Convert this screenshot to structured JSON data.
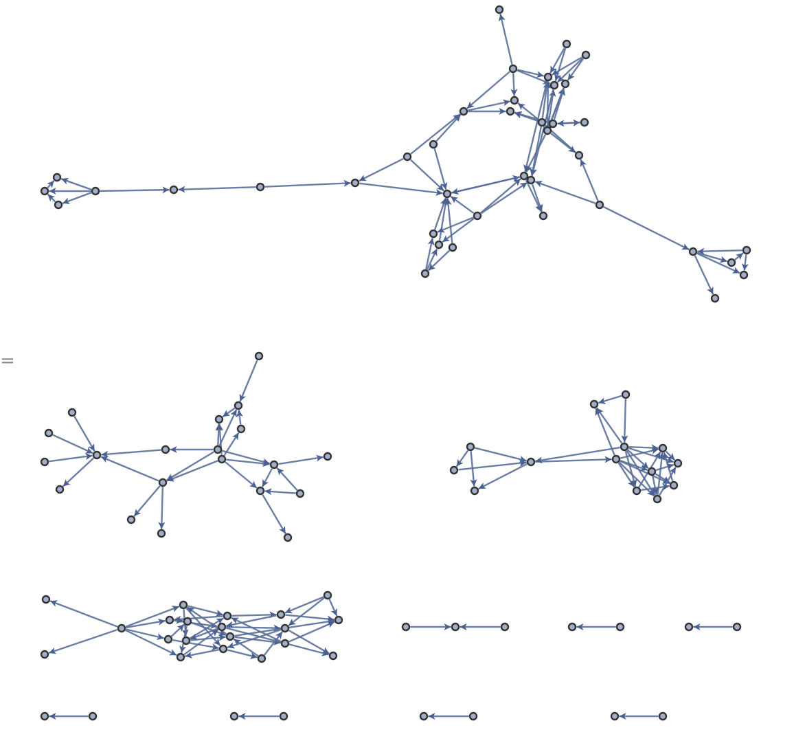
{
  "equals_sign": "=",
  "colors": {
    "edge": "#5a6f98",
    "node_fill": "#a3afc9",
    "node_stroke": "#333333"
  },
  "graphs": [
    {
      "name": "input-graph",
      "edges": [
        [
          "a2",
          "a1"
        ],
        [
          "a2",
          "a5"
        ],
        [
          "a2",
          "a6"
        ],
        [
          "a2",
          "a8"
        ],
        [
          "a2",
          "a10"
        ],
        [
          "a3",
          "a5"
        ],
        [
          "a3",
          "a6"
        ],
        [
          "a4",
          "a5"
        ],
        [
          "a4",
          "a7"
        ],
        [
          "a4",
          "a6"
        ],
        [
          "a10",
          "a8"
        ],
        [
          "a10",
          "a9"
        ],
        [
          "a11",
          "a9"
        ],
        [
          "a11",
          "a8"
        ],
        [
          "a12",
          "a14"
        ],
        [
          "a13",
          "a5"
        ],
        [
          "a13",
          "a6"
        ],
        [
          "a13",
          "a7"
        ],
        [
          "a11",
          "a5"
        ],
        [
          "a12",
          "a7"
        ],
        [
          "a13",
          "a19"
        ],
        [
          "a5",
          "a19"
        ],
        [
          "a6",
          "a20"
        ],
        [
          "a11",
          "a20"
        ],
        [
          "a15",
          "a11"
        ],
        [
          "a13",
          "a15"
        ],
        [
          "a14",
          "a12"
        ],
        [
          "a17",
          "a10"
        ],
        [
          "a16",
          "a10"
        ],
        [
          "a17",
          "a28"
        ],
        [
          "a28",
          "a18"
        ],
        [
          "a17",
          "a18"
        ],
        [
          "a16",
          "a18"
        ],
        [
          "a18",
          "a19"
        ],
        [
          "a19",
          "a18"
        ],
        [
          "a23",
          "a18"
        ],
        [
          "a23",
          "a19"
        ],
        [
          "a23",
          "a20"
        ],
        [
          "a20",
          "a21"
        ],
        [
          "a19",
          "a21"
        ],
        [
          "a22",
          "a20"
        ],
        [
          "a22",
          "a15"
        ],
        [
          "a22",
          "a35"
        ],
        [
          "a24",
          "a18"
        ],
        [
          "a25",
          "a18"
        ],
        [
          "a26",
          "a18"
        ],
        [
          "a27",
          "a24"
        ],
        [
          "a27",
          "a25"
        ],
        [
          "a23",
          "a24"
        ],
        [
          "a23",
          "a25"
        ],
        [
          "a26",
          "a27"
        ],
        [
          "a29",
          "a30"
        ],
        [
          "a29",
          "a28"
        ],
        [
          "a31",
          "a30"
        ],
        [
          "a31",
          "a32"
        ],
        [
          "a31",
          "a33"
        ],
        [
          "a31",
          "a34"
        ],
        [
          "a33",
          "a32"
        ],
        [
          "a34",
          "a33"
        ],
        [
          "a36",
          "a35"
        ],
        [
          "a35",
          "a37"
        ],
        [
          "a35",
          "a38"
        ],
        [
          "a36",
          "a38"
        ],
        [
          "a37",
          "a36"
        ],
        [
          "a35",
          "a39"
        ],
        [
          "a12",
          "a9"
        ],
        [
          "a7",
          "a13"
        ]
      ]
    },
    {
      "name": "component-1",
      "edges": [
        [
          "b1",
          "b2"
        ],
        [
          "b2",
          "b3"
        ],
        [
          "b5",
          "b2"
        ],
        [
          "b5",
          "b3"
        ],
        [
          "b6",
          "b3"
        ],
        [
          "b6",
          "b4"
        ],
        [
          "b4",
          "b2"
        ],
        [
          "b5",
          "b7"
        ],
        [
          "b7",
          "b8"
        ],
        [
          "b9",
          "b8"
        ],
        [
          "b10",
          "b8"
        ],
        [
          "b11",
          "b8"
        ],
        [
          "b8",
          "b12"
        ],
        [
          "b13",
          "b8"
        ],
        [
          "b13",
          "b14"
        ],
        [
          "b13",
          "b15"
        ],
        [
          "b6",
          "b13"
        ],
        [
          "b5",
          "b13"
        ],
        [
          "b5",
          "b16"
        ],
        [
          "b6",
          "b16"
        ],
        [
          "b6",
          "b18"
        ],
        [
          "b16",
          "b17"
        ],
        [
          "b16",
          "b18"
        ],
        [
          "b19",
          "b16"
        ],
        [
          "b19",
          "b18"
        ],
        [
          "b18",
          "b20"
        ]
      ]
    },
    {
      "name": "component-2",
      "edges": [
        [
          "c1",
          "c2"
        ],
        [
          "c1",
          "c3"
        ],
        [
          "c1",
          "c4"
        ],
        [
          "c2",
          "c4"
        ],
        [
          "c4",
          "c3"
        ],
        [
          "c4",
          "c5"
        ],
        [
          "c6",
          "c4"
        ],
        [
          "c5",
          "c7"
        ],
        [
          "c6",
          "c7"
        ],
        [
          "c8",
          "c7"
        ],
        [
          "c8",
          "c6"
        ],
        [
          "c5",
          "c9"
        ],
        [
          "c5",
          "c11"
        ],
        [
          "c5",
          "c13"
        ],
        [
          "c5",
          "c14"
        ],
        [
          "c5",
          "c12"
        ],
        [
          "c6",
          "c9"
        ],
        [
          "c6",
          "c10"
        ],
        [
          "c6",
          "c11"
        ],
        [
          "c6",
          "c13"
        ],
        [
          "c9",
          "c10"
        ],
        [
          "c11",
          "c12"
        ],
        [
          "c13",
          "c9"
        ],
        [
          "c14",
          "c10"
        ],
        [
          "c12",
          "c9"
        ],
        [
          "c11",
          "c10"
        ],
        [
          "c14",
          "c9"
        ],
        [
          "c13",
          "c12"
        ],
        [
          "c11",
          "c14"
        ],
        [
          "c6",
          "c14"
        ]
      ]
    },
    {
      "name": "component-3",
      "edges": [
        [
          "d3",
          "d1"
        ],
        [
          "d3",
          "d2"
        ],
        [
          "d3",
          "d4"
        ],
        [
          "d3",
          "d5"
        ],
        [
          "d3",
          "d7"
        ],
        [
          "d3",
          "d9"
        ],
        [
          "d4",
          "d10"
        ],
        [
          "d5",
          "d11"
        ],
        [
          "d6",
          "d12"
        ],
        [
          "d7",
          "d13"
        ],
        [
          "d8",
          "d10"
        ],
        [
          "d9",
          "d11"
        ],
        [
          "d10",
          "d5"
        ],
        [
          "d11",
          "d8"
        ],
        [
          "d12",
          "d4"
        ],
        [
          "d13",
          "d9"
        ],
        [
          "d4",
          "d8"
        ],
        [
          "d6",
          "d9"
        ],
        [
          "d5",
          "d6"
        ],
        [
          "d7",
          "d6"
        ],
        [
          "d10",
          "d15"
        ],
        [
          "d11",
          "d16"
        ],
        [
          "d12",
          "d17"
        ],
        [
          "d13",
          "d14"
        ],
        [
          "d14",
          "d12"
        ],
        [
          "d15",
          "d11"
        ],
        [
          "d16",
          "d13"
        ],
        [
          "d17",
          "d10"
        ],
        [
          "d14",
          "d16"
        ],
        [
          "d18",
          "d19"
        ],
        [
          "d18",
          "d15"
        ],
        [
          "d18",
          "d16"
        ],
        [
          "d15",
          "d19"
        ],
        [
          "d16",
          "d20"
        ],
        [
          "d17",
          "d19"
        ],
        [
          "d11",
          "d20"
        ],
        [
          "d12",
          "d19"
        ],
        [
          "d4",
          "d13"
        ],
        [
          "d8",
          "d12"
        ]
      ]
    },
    {
      "name": "pair-chain",
      "edges": [
        [
          "e1",
          "e2"
        ],
        [
          "e3",
          "e2"
        ]
      ]
    },
    {
      "name": "pair-1",
      "edges": [
        [
          "f2",
          "f1"
        ]
      ]
    },
    {
      "name": "pair-2",
      "edges": [
        [
          "g2",
          "g1"
        ]
      ]
    },
    {
      "name": "pair-3",
      "edges": [
        [
          "h2",
          "h1"
        ]
      ]
    },
    {
      "name": "pair-4",
      "edges": [
        [
          "i2",
          "i1"
        ]
      ]
    },
    {
      "name": "pair-5",
      "edges": [
        [
          "j2",
          "j1"
        ]
      ]
    },
    {
      "name": "pair-6",
      "edges": [
        [
          "k2",
          "k1"
        ]
      ]
    }
  ]
}
